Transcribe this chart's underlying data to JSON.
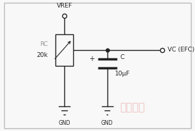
{
  "bg_color": "#f8f8f8",
  "border_color": "#bbbbbb",
  "line_color": "#222222",
  "rc_label_color": "#999999",
  "text_vref": "VREF",
  "text_rc": "RC",
  "text_20k": "20k",
  "text_vc": "VC (EFC)",
  "text_c": "C",
  "text_cap": "10μF",
  "text_gnd1": "GND",
  "text_gnd2": "GND",
  "watermark": "锦玉电子",
  "watermark_color": "#e8a0a0",
  "figsize": [
    2.85,
    1.91
  ],
  "dpi": 100
}
